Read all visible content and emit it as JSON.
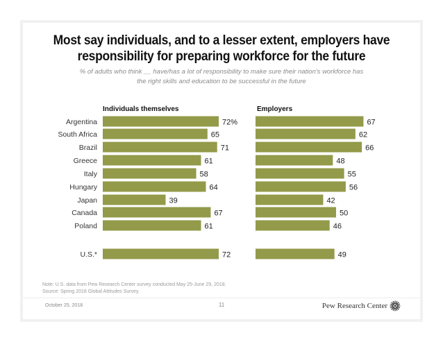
{
  "header": {
    "title_line1": "Most say individuals, and to a lesser extent, employers have",
    "title_line2": "responsibility for preparing workforce for the future",
    "subtitle_line1": "% of adults who think __ have/has a lot of responsibility to make sure their nation's workforce has",
    "subtitle_line2": "the right skills and education to be successful in the future"
  },
  "colors": {
    "bar": "#939a4a",
    "frame": "#f1f1f1"
  },
  "chart_data": [
    {
      "type": "bar",
      "orientation": "horizontal",
      "title": "Individuals themselves",
      "categories": [
        "Argentina",
        "South Africa",
        "Brazil",
        "Greece",
        "Italy",
        "Hungary",
        "Japan",
        "Canada",
        "Poland",
        "U.S.*"
      ],
      "values": [
        72,
        65,
        71,
        61,
        58,
        64,
        39,
        67,
        61,
        72
      ],
      "value_labels": [
        "72%",
        "65",
        "71",
        "61",
        "58",
        "64",
        "39",
        "67",
        "61",
        "72"
      ],
      "unit": "%",
      "xlim": [
        0,
        100
      ],
      "grid": false
    },
    {
      "type": "bar",
      "orientation": "horizontal",
      "title": "Employers",
      "categories": [
        "Argentina",
        "South Africa",
        "Brazil",
        "Greece",
        "Italy",
        "Hungary",
        "Japan",
        "Canada",
        "Poland",
        "U.S.*"
      ],
      "values": [
        67,
        62,
        66,
        48,
        55,
        56,
        42,
        50,
        46,
        49
      ],
      "value_labels": [
        "67",
        "62",
        "66",
        "48",
        "55",
        "56",
        "42",
        "50",
        "46",
        "49"
      ],
      "unit": "%",
      "xlim": [
        0,
        100
      ],
      "grid": false
    }
  ],
  "footer": {
    "note": "Note: U.S. data from Pew Research Center survey conducted May 25-June 29, 2018.",
    "source": "Source: Spring 2018 Global Attitudes Survey.",
    "date": "October 25, 2018",
    "page_number": "11",
    "brand": "Pew Research Center",
    "brand_icon": "pew-logo-icon"
  }
}
